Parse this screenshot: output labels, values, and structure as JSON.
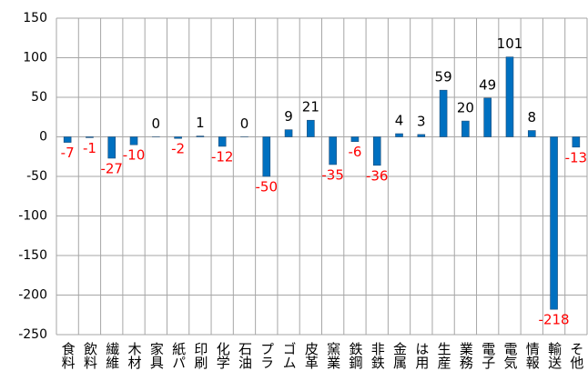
{
  "chart_data": {
    "type": "bar",
    "categories": [
      "食料",
      "飲料",
      "繊維",
      "木材",
      "家具",
      "紙パ",
      "印刷",
      "化学",
      "石油",
      "プラ",
      "ゴム",
      "皮革",
      "窯業",
      "鉄鋼",
      "非鉄",
      "金属",
      "は用",
      "生産",
      "業務",
      "電子",
      "電気",
      "情報",
      "輸送",
      "そ他"
    ],
    "values": [
      -7,
      -1,
      -27,
      -10,
      0,
      -2,
      1,
      -12,
      0,
      -50,
      9,
      21,
      -35,
      -6,
      -36,
      4,
      3,
      59,
      20,
      49,
      101,
      8,
      -218,
      -13
    ],
    "color": "#0070c0",
    "negative_label_color": "#ff0000",
    "ylim": [
      -250,
      150
    ],
    "yticks": [
      -250,
      -200,
      -150,
      -100,
      -50,
      0,
      50,
      100,
      150
    ],
    "grid": true
  }
}
